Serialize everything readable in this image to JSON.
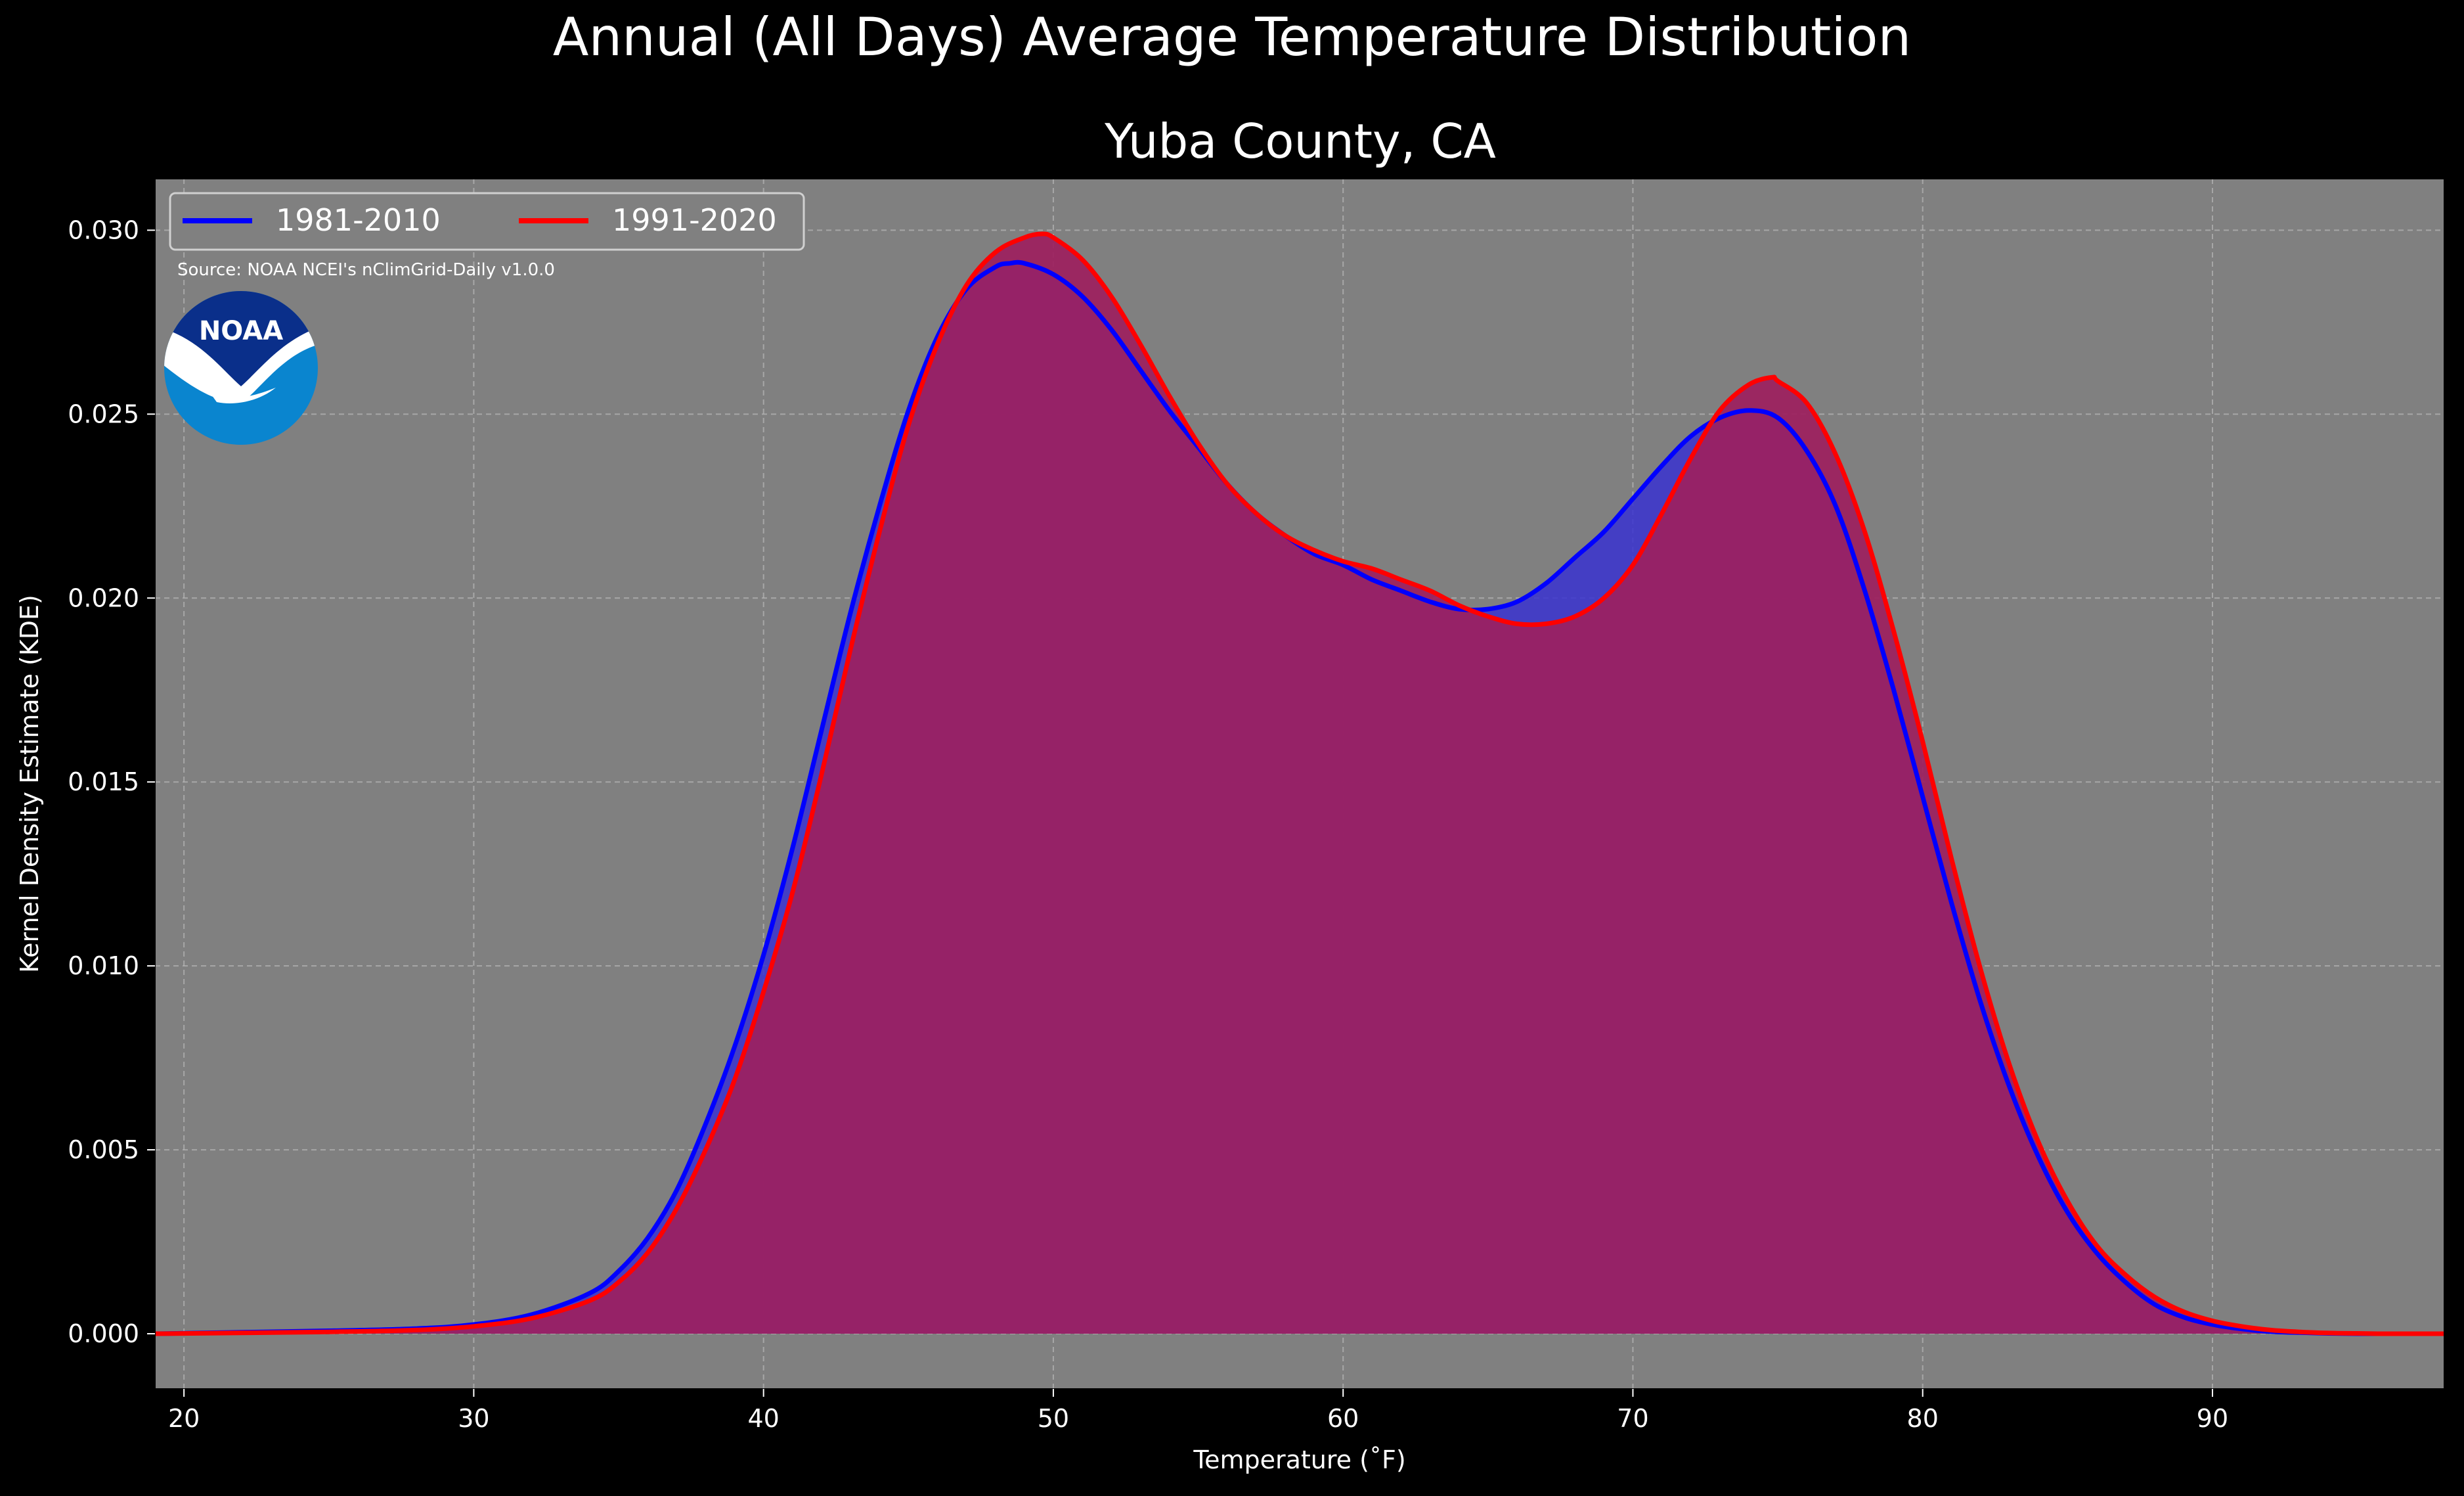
{
  "chart_data": {
    "type": "area",
    "suptitle": "Annual (All Days) Average Temperature Distribution",
    "title": "Yuba County, CA",
    "xlabel": "Temperature ($^\\circ$F)",
    "xlabel_display": "Temperature (˚F)",
    "ylabel": "Kernel Density Estimate (KDE)",
    "xlim": [
      19,
      98
    ],
    "ylim": [
      -0.0015,
      0.0314
    ],
    "xticks": [
      20,
      30,
      40,
      50,
      60,
      70,
      80,
      90
    ],
    "xtick_labels": [
      "20",
      "30",
      "40",
      "50",
      "60",
      "70",
      "80",
      "90"
    ],
    "yticks": [
      0.0,
      0.005,
      0.01,
      0.015,
      0.02,
      0.025,
      0.03
    ],
    "ytick_labels": [
      "0.000",
      "0.005",
      "0.010",
      "0.015",
      "0.020",
      "0.025",
      "0.030"
    ],
    "grid": true,
    "legend_placement": "top-left",
    "source_note": "Source: NOAA NCEI's nClimGrid-Daily v1.0.0",
    "logo_text": "NOAA",
    "colors": {
      "figure_bg": "#000000",
      "axes_bg": "#808080",
      "series_1": "#0000ff",
      "series_2": "#ff0000",
      "fill_1": "#3a33d0",
      "fill_2": "#9d1f5e",
      "grid": "#b8b8b8",
      "logo_dark": "#0a2f8a",
      "logo_light": "#0a85cf"
    },
    "series": [
      {
        "name": "1981-2010",
        "color": "#0000ff",
        "x": [
          19,
          25,
          28,
          30,
          32,
          34,
          35,
          36,
          37,
          38,
          39,
          40,
          41,
          42,
          43,
          44,
          45,
          46,
          47,
          48,
          48.5,
          49,
          50,
          51,
          52,
          53,
          54,
          55,
          56,
          57,
          58,
          59,
          60,
          61,
          62,
          63,
          64,
          65,
          66,
          67,
          68,
          69,
          70,
          71,
          72,
          73,
          74,
          75,
          76,
          77,
          78,
          79,
          80,
          81,
          82,
          83,
          84,
          85,
          86,
          87,
          88,
          89,
          90,
          91,
          92,
          93,
          94,
          95,
          96,
          98
        ],
        "y": [
          0.0,
          8e-05,
          0.00014,
          0.00025,
          0.00052,
          0.0011,
          0.0017,
          0.0026,
          0.0039,
          0.0057,
          0.0078,
          0.0103,
          0.0132,
          0.0164,
          0.0196,
          0.0225,
          0.0251,
          0.0271,
          0.0284,
          0.029,
          0.0291,
          0.0291,
          0.0288,
          0.0282,
          0.0273,
          0.0262,
          0.0251,
          0.0241,
          0.0231,
          0.0223,
          0.0217,
          0.0212,
          0.0209,
          0.0205,
          0.0202,
          0.0199,
          0.0197,
          0.0197,
          0.0199,
          0.0204,
          0.0211,
          0.0218,
          0.0227,
          0.0236,
          0.0244,
          0.0249,
          0.0251,
          0.0249,
          0.024,
          0.0225,
          0.0202,
          0.0175,
          0.0146,
          0.0117,
          0.009,
          0.0067,
          0.0048,
          0.0033,
          0.0022,
          0.0014,
          0.0008,
          0.00045,
          0.00025,
          0.00013,
          6e-05,
          3e-05,
          1e-05,
          0.0,
          0.0,
          0.0
        ]
      },
      {
        "name": "1991-2020",
        "color": "#ff0000",
        "x": [
          19,
          25,
          28,
          30,
          32,
          34,
          35,
          36,
          37,
          38,
          39,
          40,
          41,
          42,
          43,
          44,
          45,
          46,
          47,
          48,
          49,
          49.6,
          50,
          51,
          52,
          53,
          54,
          55,
          56,
          57,
          58,
          59,
          60,
          61,
          62,
          63,
          64,
          65,
          66,
          67,
          68,
          69,
          70,
          71,
          72,
          73,
          74,
          74.8,
          75,
          76,
          77,
          78,
          79,
          80,
          81,
          82,
          83,
          84,
          85,
          86,
          87,
          88,
          89,
          90,
          91,
          92,
          93,
          94,
          95,
          96,
          98
        ],
        "y": [
          0.0,
          5e-05,
          0.0001,
          0.0002,
          0.00042,
          0.0009,
          0.0014,
          0.0022,
          0.0034,
          0.005,
          0.0069,
          0.0093,
          0.012,
          0.0152,
          0.0186,
          0.0218,
          0.0247,
          0.0269,
          0.0285,
          0.0294,
          0.0298,
          0.0299,
          0.0298,
          0.0292,
          0.0282,
          0.0269,
          0.0255,
          0.0242,
          0.0231,
          0.0223,
          0.0217,
          0.0213,
          0.021,
          0.0208,
          0.0205,
          0.0202,
          0.0198,
          0.0195,
          0.0193,
          0.0193,
          0.0195,
          0.02,
          0.0209,
          0.0223,
          0.0238,
          0.0251,
          0.0258,
          0.026,
          0.0259,
          0.0253,
          0.0239,
          0.0218,
          0.0191,
          0.0161,
          0.0129,
          0.0099,
          0.0073,
          0.0052,
          0.0036,
          0.0024,
          0.0016,
          0.001,
          0.0006,
          0.00035,
          0.0002,
          0.0001,
          5e-05,
          2e-05,
          1e-05,
          0.0,
          0.0
        ]
      }
    ]
  }
}
